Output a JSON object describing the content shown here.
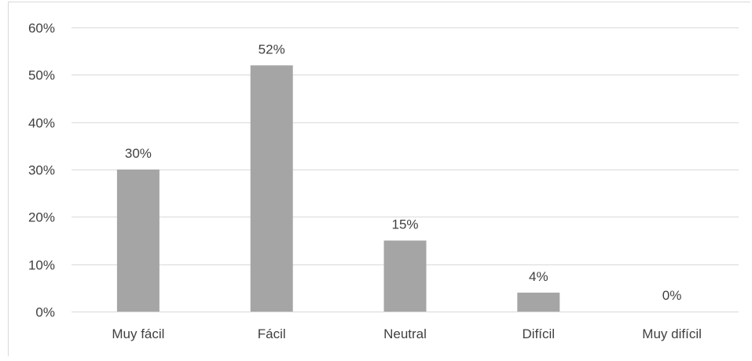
{
  "chart_data": {
    "type": "bar",
    "categories": [
      "Muy fácil",
      "Fácil",
      "Neutral",
      "Difícil",
      "Muy difícil"
    ],
    "values": [
      30,
      52,
      15,
      4,
      0
    ],
    "data_labels": [
      "30%",
      "52%",
      "15%",
      "4%",
      "0%"
    ],
    "y_tick_labels": [
      "0%",
      "10%",
      "20%",
      "30%",
      "40%",
      "50%",
      "60%"
    ],
    "y_ticks": [
      0,
      10,
      20,
      30,
      40,
      50,
      60
    ],
    "ylim": [
      0,
      60
    ],
    "grid": true,
    "legend": "none",
    "bar_color": "#a5a5a5",
    "gridline_color": "#d9d9d9",
    "text_color": "#404040"
  }
}
